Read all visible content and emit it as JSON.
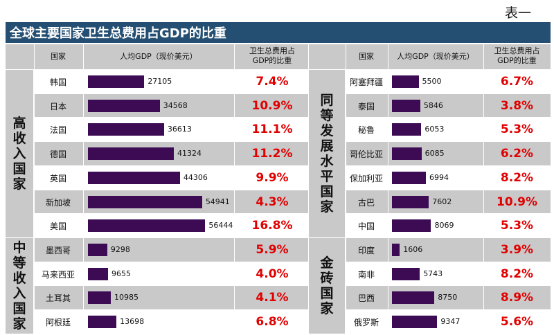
{
  "caption": "表一",
  "title": "全球主要国家卫生总费用占GDP的比重",
  "colors": {
    "bar": "#3c0b54",
    "pct": "#e00000",
    "header": "#244f72",
    "row_shade": "#c9c9c9"
  },
  "left_table": {
    "headers": {
      "country": "国家",
      "gdp": "人均GDP（现价美元）",
      "share": "卫生总费用占\nGDP的比重"
    },
    "groups": [
      {
        "label": "高\n收\n入\n国\n家"
      },
      {
        "label": "中\n等\n收\n入\n国\n家"
      }
    ]
  },
  "right_table": {
    "headers": {
      "country": "国家",
      "gdp": "人均GDP（现价美元）",
      "share": "卫生总费用占\nGDP的比重"
    },
    "groups": [
      {
        "label": "同\n等\n发\n展\n水\n平\n国\n家"
      },
      {
        "label": "金\n砖\n国\n家"
      }
    ]
  },
  "chart_data": [
    {
      "type": "table",
      "columns": [
        "国家",
        "人均GDP（现价美元）",
        "卫生总费用占GDP的比重"
      ],
      "rows": [
        {
          "group": "高收入国家",
          "country": "韩国",
          "gdp": 27105,
          "share": "7.4%"
        },
        {
          "group": "高收入国家",
          "country": "日本",
          "gdp": 34568,
          "share": "10.9%"
        },
        {
          "group": "高收入国家",
          "country": "法国",
          "gdp": 36613,
          "share": "11.1%"
        },
        {
          "group": "高收入国家",
          "country": "德国",
          "gdp": 41324,
          "share": "11.2%"
        },
        {
          "group": "高收入国家",
          "country": "英国",
          "gdp": 44306,
          "share": "9.9%"
        },
        {
          "group": "高收入国家",
          "country": "新加坡",
          "gdp": 54941,
          "share": "4.3%"
        },
        {
          "group": "高收入国家",
          "country": "美国",
          "gdp": 56444,
          "share": "16.8%"
        },
        {
          "group": "中等收入国家",
          "country": "墨西哥",
          "gdp": 9298,
          "share": "5.9%"
        },
        {
          "group": "中等收入国家",
          "country": "马来西亚",
          "gdp": 9655,
          "share": "4.0%"
        },
        {
          "group": "中等收入国家",
          "country": "土耳其",
          "gdp": 10985,
          "share": "4.1%"
        },
        {
          "group": "中等收入国家",
          "country": "阿根廷",
          "gdp": 13698,
          "share": "6.8%"
        }
      ]
    },
    {
      "type": "table",
      "columns": [
        "国家",
        "人均GDP（现价美元）",
        "卫生总费用占GDP的比重"
      ],
      "rows": [
        {
          "group": "同等发展水平国家",
          "country": "阿塞拜疆",
          "gdp": 5500,
          "share": "6.7%"
        },
        {
          "group": "同等发展水平国家",
          "country": "泰国",
          "gdp": 5846,
          "share": "3.8%"
        },
        {
          "group": "同等发展水平国家",
          "country": "秘鲁",
          "gdp": 6053,
          "share": "5.3%"
        },
        {
          "group": "同等发展水平国家",
          "country": "哥伦比亚",
          "gdp": 6085,
          "share": "6.2%"
        },
        {
          "group": "同等发展水平国家",
          "country": "保加利亚",
          "gdp": 6994,
          "share": "8.2%"
        },
        {
          "group": "同等发展水平国家",
          "country": "古巴",
          "gdp": 7602,
          "share": "10.9%"
        },
        {
          "group": "同等发展水平国家",
          "country": "中国",
          "gdp": 8069,
          "share": "5.3%"
        },
        {
          "group": "金砖国家",
          "country": "印度",
          "gdp": 1606,
          "share": "3.9%"
        },
        {
          "group": "金砖国家",
          "country": "南非",
          "gdp": 5743,
          "share": "8.2%"
        },
        {
          "group": "金砖国家",
          "country": "巴西",
          "gdp": 8750,
          "share": "8.9%"
        },
        {
          "group": "金砖国家",
          "country": "俄罗斯",
          "gdp": 9347,
          "share": "5.6%"
        }
      ]
    }
  ]
}
